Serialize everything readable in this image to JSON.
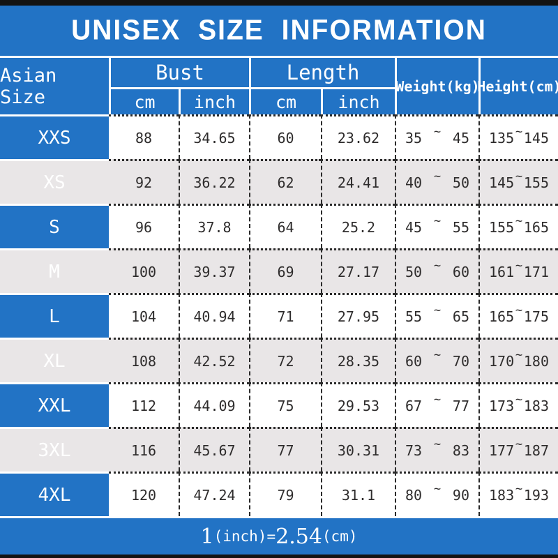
{
  "title": "UNISEX SIZE INFORMATION",
  "colors": {
    "accent_blue": "#2273c5",
    "top_bottom_bar": "#131313",
    "alt_row_gray": "#e9e6e7",
    "data_text": "#2e2c2c",
    "header_text": "#ffffff"
  },
  "header": {
    "asian_size": "Asian Size",
    "bust": "Bust",
    "length": "Length",
    "bust_cm": "cm",
    "bust_inch": "inch",
    "length_cm": "cm",
    "length_inch": "inch",
    "weight": "Weight(kg)",
    "height": "Height(cm)",
    "range_separator": "~"
  },
  "table": {
    "rows": [
      {
        "size": "XXS",
        "bust_cm": "88",
        "bust_inch": "34.65",
        "length_cm": "60",
        "length_inch": "23.62",
        "weight_min": "35",
        "weight_max": "45",
        "height_min": "135",
        "height_max": "145"
      },
      {
        "size": "XS",
        "bust_cm": "92",
        "bust_inch": "36.22",
        "length_cm": "62",
        "length_inch": "24.41",
        "weight_min": "40",
        "weight_max": "50",
        "height_min": "145",
        "height_max": "155"
      },
      {
        "size": "S",
        "bust_cm": "96",
        "bust_inch": "37.8",
        "length_cm": "64",
        "length_inch": "25.2",
        "weight_min": "45",
        "weight_max": "55",
        "height_min": "155",
        "height_max": "165"
      },
      {
        "size": "M",
        "bust_cm": "100",
        "bust_inch": "39.37",
        "length_cm": "69",
        "length_inch": "27.17",
        "weight_min": "50",
        "weight_max": "60",
        "height_min": "161",
        "height_max": "171"
      },
      {
        "size": "L",
        "bust_cm": "104",
        "bust_inch": "40.94",
        "length_cm": "71",
        "length_inch": "27.95",
        "weight_min": "55",
        "weight_max": "65",
        "height_min": "165",
        "height_max": "175"
      },
      {
        "size": "XL",
        "bust_cm": "108",
        "bust_inch": "42.52",
        "length_cm": "72",
        "length_inch": "28.35",
        "weight_min": "60",
        "weight_max": "70",
        "height_min": "170",
        "height_max": "180"
      },
      {
        "size": "XXL",
        "bust_cm": "112",
        "bust_inch": "44.09",
        "length_cm": "75",
        "length_inch": "29.53",
        "weight_min": "67",
        "weight_max": "77",
        "height_min": "173",
        "height_max": "183"
      },
      {
        "size": "3XL",
        "bust_cm": "116",
        "bust_inch": "45.67",
        "length_cm": "77",
        "length_inch": "30.31",
        "weight_min": "73",
        "weight_max": "83",
        "height_min": "177",
        "height_max": "187"
      },
      {
        "size": "4XL",
        "bust_cm": "120",
        "bust_inch": "47.24",
        "length_cm": "79",
        "length_inch": "31.1",
        "weight_min": "80",
        "weight_max": "90",
        "height_min": "183",
        "height_max": "193"
      }
    ]
  },
  "footer": {
    "n1": "1",
    "u1": "(inch)=",
    "n2": "2.54",
    "u2": "(cm)",
    "full_text": "1(inch)=2.54(cm)"
  }
}
